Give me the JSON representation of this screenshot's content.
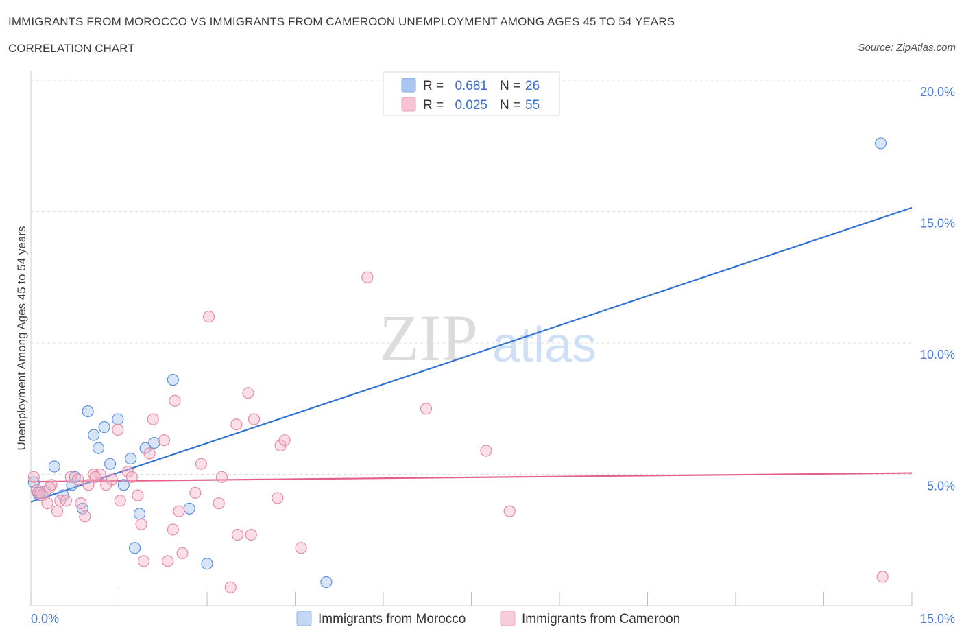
{
  "header": {
    "title": "IMMIGRANTS FROM MOROCCO VS IMMIGRANTS FROM CAMEROON UNEMPLOYMENT AMONG AGES 45 TO 54 YEARS",
    "subtitle": "CORRELATION CHART",
    "source": "Source: ZipAtlas.com"
  },
  "watermark": {
    "zip": "ZIP",
    "atlas": "atlas"
  },
  "legend": {
    "rows": [
      {
        "r_label": "R =",
        "r_value": "0.681",
        "n_label": "N =",
        "n_value": "26",
        "color": "#a9c6f0"
      },
      {
        "r_label": "R =",
        "r_value": "0.025",
        "n_label": "N =",
        "n_value": "55",
        "color": "#f6b6c8"
      }
    ]
  },
  "bottom_legend": [
    {
      "label": "Immigrants from Morocco",
      "color": "#a9c6f0"
    },
    {
      "label": "Immigrants from Cameroon",
      "color": "#f6b6c8"
    }
  ],
  "chart_data": {
    "type": "scatter",
    "title": "IMMIGRANTS FROM MOROCCO VS IMMIGRANTS FROM CAMEROON UNEMPLOYMENT AMONG AGES 45 TO 54 YEARS",
    "xlabel": "",
    "ylabel": "Unemployment Among Ages 45 to 54 years",
    "xlim": [
      0,
      15
    ],
    "ylim": [
      0,
      20
    ],
    "x_tick_labels": [
      "0.0%",
      "15.0%"
    ],
    "y_ticks": [
      5,
      10,
      15,
      20
    ],
    "y_tick_labels": [
      "5.0%",
      "10.0%",
      "15.0%",
      "20.0%"
    ],
    "series": [
      {
        "name": "Immigrants from Morocco",
        "color": "#5b8fe0",
        "fill": "#a9c6f0",
        "trend": {
          "x": [
            0,
            15
          ],
          "y": [
            3.95,
            15.15
          ],
          "color": "#3173d4"
        },
        "points": [
          {
            "x": 0.05,
            "y": 4.7
          },
          {
            "x": 0.12,
            "y": 4.3
          },
          {
            "x": 0.25,
            "y": 4.35
          },
          {
            "x": 0.4,
            "y": 5.3
          },
          {
            "x": 0.55,
            "y": 4.2
          },
          {
            "x": 0.7,
            "y": 4.6
          },
          {
            "x": 0.75,
            "y": 4.9
          },
          {
            "x": 0.88,
            "y": 3.7
          },
          {
            "x": 0.97,
            "y": 7.4
          },
          {
            "x": 1.07,
            "y": 6.5
          },
          {
            "x": 1.15,
            "y": 6.0
          },
          {
            "x": 1.25,
            "y": 6.8
          },
          {
            "x": 1.35,
            "y": 5.4
          },
          {
            "x": 1.48,
            "y": 7.1
          },
          {
            "x": 1.58,
            "y": 4.6
          },
          {
            "x": 1.7,
            "y": 5.6
          },
          {
            "x": 1.85,
            "y": 3.5
          },
          {
            "x": 1.95,
            "y": 6.0
          },
          {
            "x": 2.1,
            "y": 6.2
          },
          {
            "x": 1.77,
            "y": 2.2
          },
          {
            "x": 2.42,
            "y": 8.6
          },
          {
            "x": 2.7,
            "y": 3.7
          },
          {
            "x": 3.0,
            "y": 1.6
          },
          {
            "x": 5.03,
            "y": 0.9
          },
          {
            "x": 14.47,
            "y": 17.6
          },
          {
            "x": 0.15,
            "y": 4.2
          }
        ]
      },
      {
        "name": "Immigrants from Cameroon",
        "color": "#e88aa5",
        "fill": "#f6b6c8",
        "trend": {
          "x": [
            0,
            15
          ],
          "y": [
            4.72,
            5.05
          ],
          "color": "#e2608a"
        },
        "points": [
          {
            "x": 0.05,
            "y": 4.9
          },
          {
            "x": 0.1,
            "y": 4.4
          },
          {
            "x": 0.2,
            "y": 4.2
          },
          {
            "x": 0.28,
            "y": 3.9
          },
          {
            "x": 0.35,
            "y": 4.6
          },
          {
            "x": 0.45,
            "y": 3.6
          },
          {
            "x": 0.5,
            "y": 4.0
          },
          {
            "x": 0.6,
            "y": 4.0
          },
          {
            "x": 0.68,
            "y": 4.9
          },
          {
            "x": 0.8,
            "y": 4.8
          },
          {
            "x": 0.85,
            "y": 3.9
          },
          {
            "x": 0.92,
            "y": 3.4
          },
          {
            "x": 0.98,
            "y": 4.6
          },
          {
            "x": 1.07,
            "y": 5.0
          },
          {
            "x": 1.18,
            "y": 5.0
          },
          {
            "x": 1.28,
            "y": 4.6
          },
          {
            "x": 1.38,
            "y": 4.8
          },
          {
            "x": 1.48,
            "y": 6.7
          },
          {
            "x": 1.52,
            "y": 4.0
          },
          {
            "x": 1.65,
            "y": 5.1
          },
          {
            "x": 1.72,
            "y": 4.9
          },
          {
            "x": 1.82,
            "y": 4.2
          },
          {
            "x": 1.88,
            "y": 3.1
          },
          {
            "x": 1.92,
            "y": 1.7
          },
          {
            "x": 2.02,
            "y": 5.8
          },
          {
            "x": 2.08,
            "y": 7.1
          },
          {
            "x": 2.27,
            "y": 6.3
          },
          {
            "x": 2.33,
            "y": 1.7
          },
          {
            "x": 2.42,
            "y": 2.9
          },
          {
            "x": 2.45,
            "y": 7.8
          },
          {
            "x": 2.52,
            "y": 3.6
          },
          {
            "x": 2.58,
            "y": 2.0
          },
          {
            "x": 2.8,
            "y": 4.3
          },
          {
            "x": 2.9,
            "y": 5.4
          },
          {
            "x": 3.03,
            "y": 11.0
          },
          {
            "x": 3.2,
            "y": 3.9
          },
          {
            "x": 3.25,
            "y": 4.9
          },
          {
            "x": 3.4,
            "y": 0.7
          },
          {
            "x": 3.5,
            "y": 6.9
          },
          {
            "x": 3.52,
            "y": 2.7
          },
          {
            "x": 3.7,
            "y": 8.1
          },
          {
            "x": 3.75,
            "y": 2.7
          },
          {
            "x": 3.8,
            "y": 7.1
          },
          {
            "x": 4.2,
            "y": 4.1
          },
          {
            "x": 4.25,
            "y": 6.1
          },
          {
            "x": 4.32,
            "y": 6.3
          },
          {
            "x": 4.6,
            "y": 2.2
          },
          {
            "x": 5.73,
            "y": 12.5
          },
          {
            "x": 6.73,
            "y": 7.5
          },
          {
            "x": 7.75,
            "y": 5.9
          },
          {
            "x": 8.15,
            "y": 3.6
          },
          {
            "x": 14.5,
            "y": 1.1
          },
          {
            "x": 0.15,
            "y": 4.3
          },
          {
            "x": 1.1,
            "y": 4.9
          },
          {
            "x": 0.32,
            "y": 4.5
          }
        ]
      }
    ]
  }
}
